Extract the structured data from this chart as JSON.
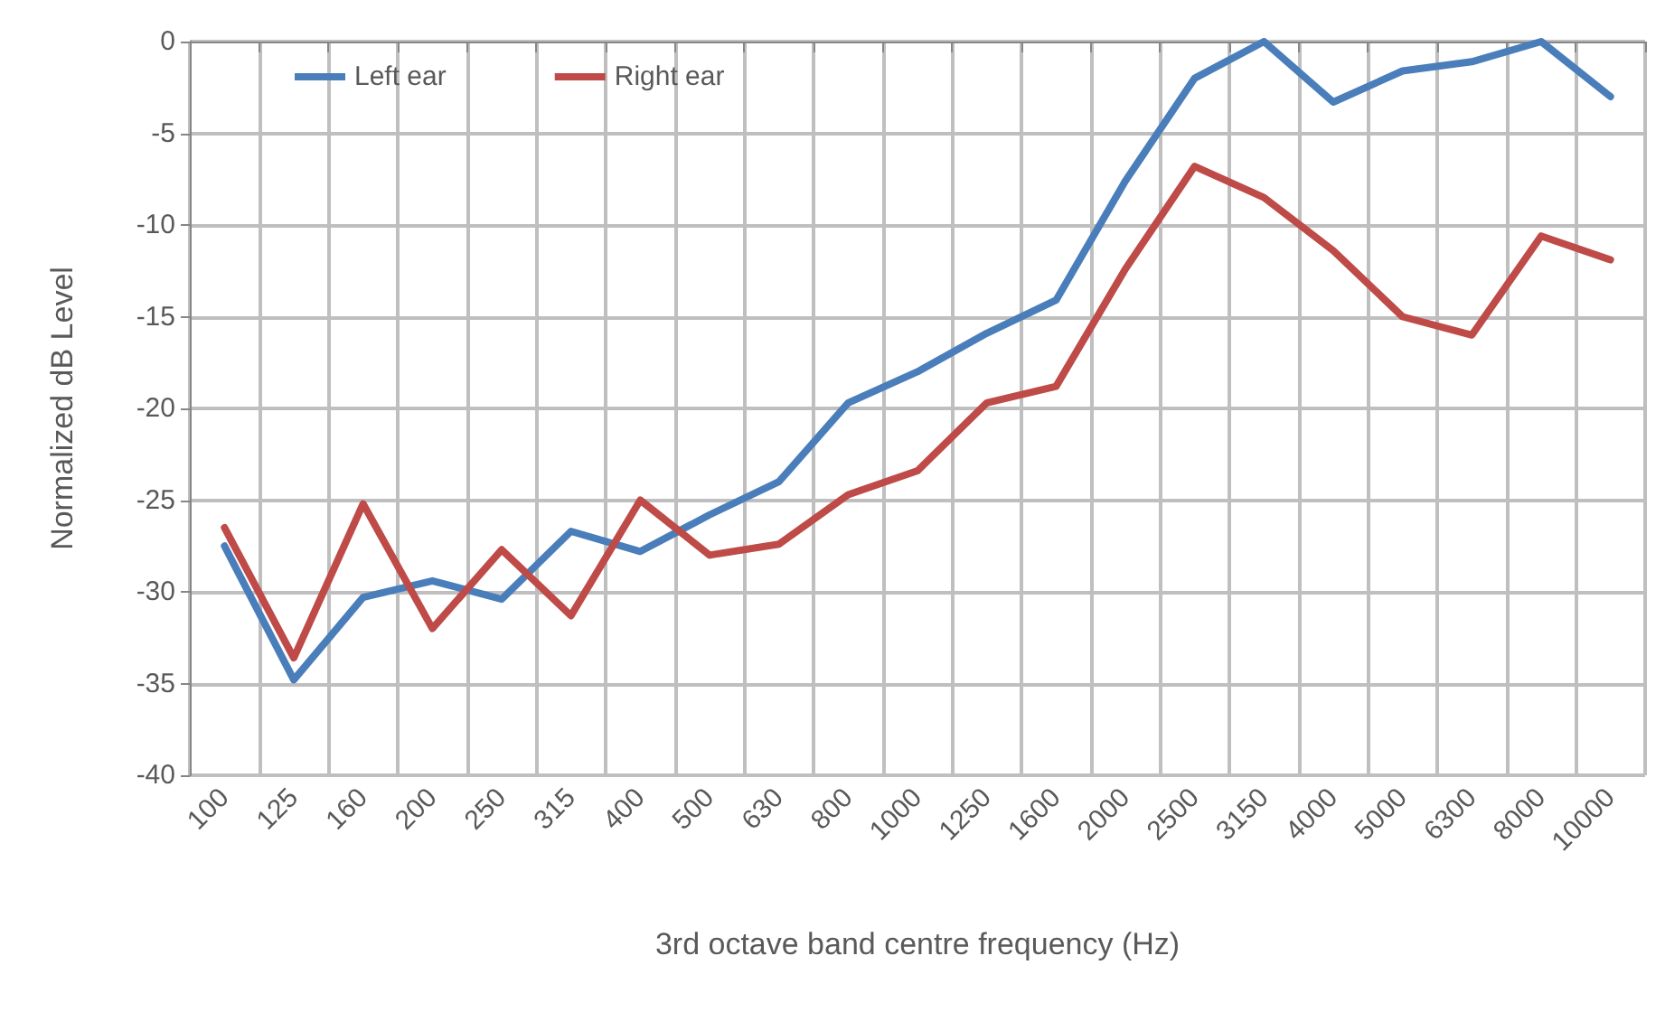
{
  "chart_data": {
    "type": "line",
    "xlabel": "3rd octave band centre frequency (Hz)",
    "ylabel": "Normalized dB Level",
    "categories": [
      "100",
      "125",
      "160",
      "200",
      "250",
      "315",
      "400",
      "500",
      "630",
      "800",
      "1000",
      "1250",
      "1600",
      "2000",
      "2500",
      "3150",
      "4000",
      "5000",
      "6300",
      "8000",
      "10000"
    ],
    "series": [
      {
        "name": "Left ear",
        "color": "#4a7ebb",
        "values": [
          -27.5,
          -34.8,
          -30.3,
          -29.4,
          -30.4,
          -26.7,
          -27.8,
          -25.8,
          -24.0,
          -19.7,
          -18.0,
          -15.9,
          -14.1,
          -7.6,
          -2.0,
          0,
          -3.3,
          -1.6,
          -1.1,
          0,
          -3.0
        ]
      },
      {
        "name": "Right ear",
        "color": "#be4b48",
        "values": [
          -26.5,
          -33.6,
          -25.2,
          -32.0,
          -27.7,
          -31.3,
          -25.0,
          -28.0,
          -27.4,
          -24.7,
          -23.4,
          -19.7,
          -18.8,
          -12.4,
          -6.8,
          -8.5,
          -11.4,
          -15.0,
          -16.0,
          -10.6,
          -11.9
        ]
      }
    ],
    "ylim": [
      -40,
      0
    ],
    "yticks": [
      -40,
      -35,
      -30,
      -25,
      -20,
      -15,
      -10,
      -5,
      0
    ],
    "grid": true,
    "legend": "top left",
    "marker": "none",
    "line_style": "solid"
  }
}
